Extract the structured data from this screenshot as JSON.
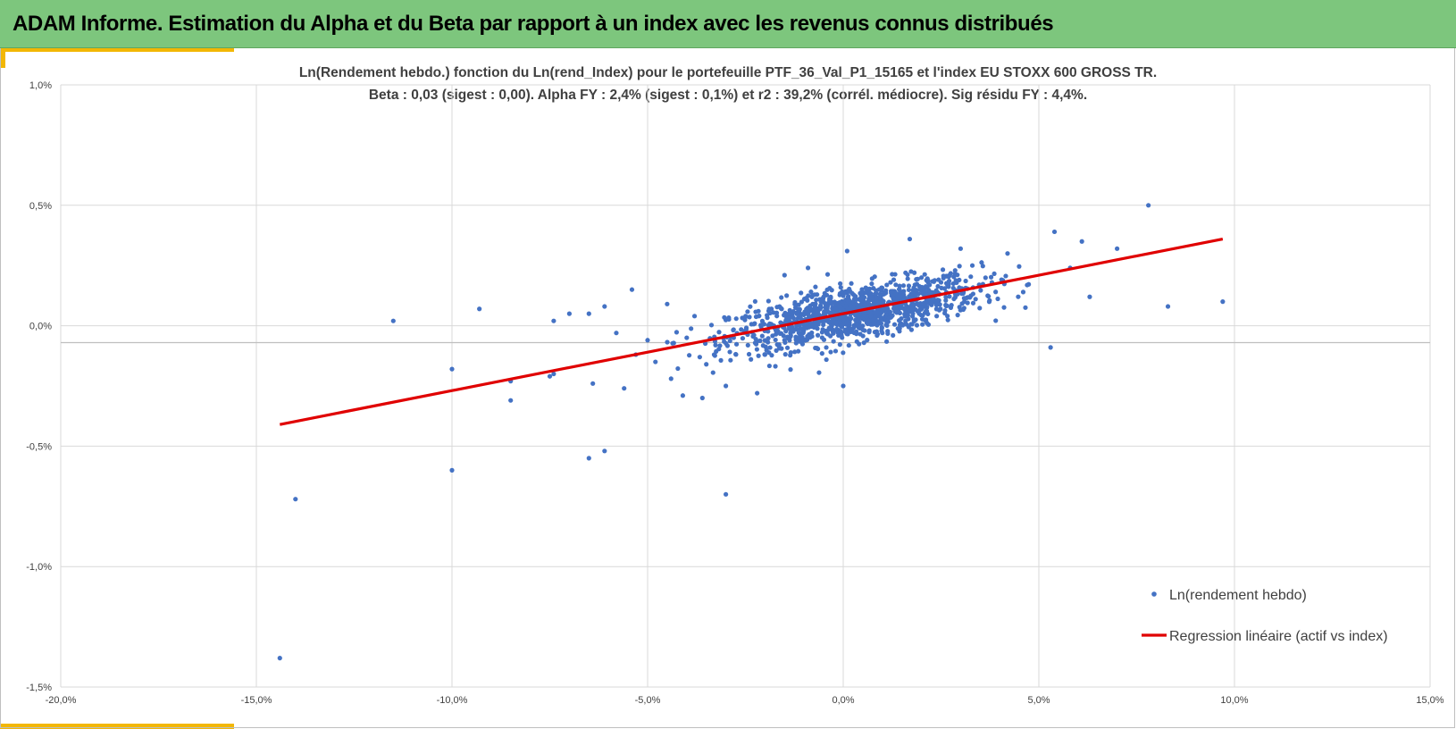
{
  "header": {
    "title": "ADAM Informe. Estimation du Alpha et du Beta par rapport à un index avec les revenus connus distribués"
  },
  "colors": {
    "header_bg": "#7dc67d",
    "accent": "#f2b705",
    "points": "#4472c4",
    "regression": "#e00000",
    "grid": "#d9d9d9"
  },
  "chart_data": {
    "type": "scatter",
    "title": "Ln(Rendement hebdo.) fonction du Ln(rend_Index) pour le portefeuille PTF_36_Val_P1_15165 et l'index EU STOXX 600 GROSS TR.",
    "subtitle": "Beta : 0,03 (sigest : 0,00).  Alpha FY : 2,4% (sigest : 0,1%) et r2 : 39,2% (corrél. médiocre). Sig résidu FY : 4,4%.",
    "xlim": [
      -20,
      15
    ],
    "ylim": [
      -1.5,
      1.0
    ],
    "x_ticks": [
      "-20,0%",
      "-15,0%",
      "-10,0%",
      "-5,0%",
      "0,0%",
      "5,0%",
      "10,0%",
      "15,0%"
    ],
    "x_tick_values": [
      -20,
      -15,
      -10,
      -5,
      0,
      5,
      10,
      15
    ],
    "y_ticks": [
      "1,0%",
      "0,5%",
      "0,0%",
      "-0,5%",
      "-1,0%",
      "-1,5%"
    ],
    "y_tick_values": [
      1.0,
      0.5,
      0.0,
      -0.5,
      -1.0,
      -1.5
    ],
    "x_axis_crosses_at_y": -0.07,
    "grid": true,
    "legend_position": "bottom-right",
    "series": [
      {
        "name": "Ln(rendement hebdo)",
        "kind": "scatter",
        "points": [
          [
            -14.4,
            -1.38
          ],
          [
            -14.0,
            -0.72
          ],
          [
            -11.5,
            0.02
          ],
          [
            -10.0,
            -0.6
          ],
          [
            -10.0,
            -0.18
          ],
          [
            -9.3,
            0.07
          ],
          [
            -8.5,
            -0.31
          ],
          [
            -8.5,
            -0.23
          ],
          [
            -7.5,
            -0.21
          ],
          [
            -7.4,
            -0.2
          ],
          [
            -7.4,
            0.02
          ],
          [
            -7.0,
            0.05
          ],
          [
            -6.5,
            -0.55
          ],
          [
            -6.5,
            0.05
          ],
          [
            -6.4,
            -0.24
          ],
          [
            -6.1,
            -0.52
          ],
          [
            -6.1,
            0.08
          ],
          [
            -5.8,
            -0.03
          ],
          [
            -5.6,
            -0.26
          ],
          [
            -5.4,
            0.15
          ],
          [
            -5.3,
            -0.12
          ],
          [
            -5.0,
            -0.06
          ],
          [
            -4.8,
            -0.15
          ],
          [
            -4.5,
            0.09
          ],
          [
            -4.4,
            -0.22
          ],
          [
            -4.1,
            -0.29
          ],
          [
            -4.0,
            -0.05
          ],
          [
            -3.8,
            0.04
          ],
          [
            -3.6,
            -0.3
          ],
          [
            -3.5,
            -0.16
          ],
          [
            -3.3,
            -0.12
          ],
          [
            -3.0,
            -0.7
          ],
          [
            -3.0,
            -0.25
          ],
          [
            -2.8,
            -0.05
          ],
          [
            -2.5,
            -0.02
          ],
          [
            -2.2,
            -0.28
          ],
          [
            -2.0,
            -0.12
          ],
          [
            -1.5,
            -0.06
          ],
          [
            -1.5,
            0.21
          ],
          [
            -1.0,
            0.05
          ],
          [
            -0.9,
            0.24
          ],
          [
            -0.5,
            0.12
          ],
          [
            0.0,
            -0.25
          ],
          [
            0.1,
            0.31
          ],
          [
            0.5,
            0.08
          ],
          [
            1.0,
            -0.03
          ],
          [
            1.7,
            0.36
          ],
          [
            2.0,
            0.2
          ],
          [
            2.5,
            0.18
          ],
          [
            3.0,
            0.32
          ],
          [
            3.3,
            0.25
          ],
          [
            3.8,
            0.18
          ],
          [
            4.2,
            0.3
          ],
          [
            4.6,
            0.14
          ],
          [
            5.3,
            -0.09
          ],
          [
            5.4,
            0.39
          ],
          [
            5.8,
            0.24
          ],
          [
            6.1,
            0.35
          ],
          [
            6.3,
            0.12
          ],
          [
            7.0,
            0.32
          ],
          [
            7.8,
            0.5
          ],
          [
            8.3,
            0.08
          ],
          [
            9.7,
            0.1
          ]
        ]
      },
      {
        "name": "Regression linéaire (actif vs index)",
        "kind": "line",
        "points": [
          [
            -14.4,
            -0.41
          ],
          [
            9.7,
            0.36
          ]
        ]
      }
    ]
  }
}
